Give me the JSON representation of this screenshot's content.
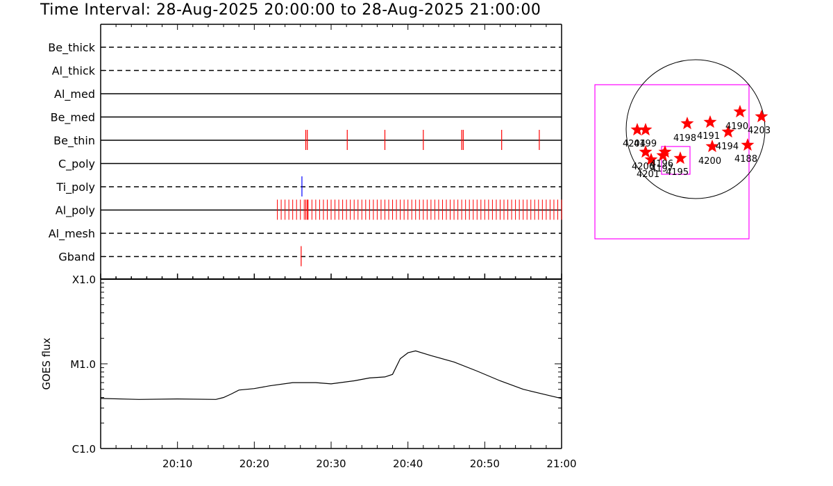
{
  "title": "Time Interval: 28-Aug-2025 20:00:00 to 28-Aug-2025 21:00:00",
  "chart_data": [
    {
      "type": "event_timeline",
      "x_range": [
        "20:00",
        "21:00"
      ],
      "rows": [
        {
          "name": "Be_thick",
          "style": "dashed",
          "events": []
        },
        {
          "name": "Al_thick",
          "style": "dashed",
          "events": []
        },
        {
          "name": "Al_med",
          "style": "solid",
          "events": []
        },
        {
          "name": "Be_med",
          "style": "solid",
          "events": []
        },
        {
          "name": "Be_thin",
          "style": "solid",
          "color": "#ff0000",
          "events": [
            26.7,
            26.9,
            32.1,
            37.0,
            42.0,
            47.0,
            47.2,
            52.2,
            57.1
          ]
        },
        {
          "name": "C_poly",
          "style": "solid",
          "events": []
        },
        {
          "name": "Ti_poly",
          "style": "dashed",
          "color": "#0000ff",
          "events": [
            26.2
          ]
        },
        {
          "name": "Al_poly",
          "style": "solid",
          "color": "#ff0000",
          "events_dense": [
            23.0,
            60.0
          ],
          "interval": 0.5,
          "events": [
            26.7,
            26.9
          ]
        },
        {
          "name": "Al_mesh",
          "style": "dashed",
          "events": []
        },
        {
          "name": "Gband",
          "style": "dashed",
          "color": "#ff0000",
          "events": [
            26.1
          ]
        }
      ]
    },
    {
      "type": "line",
      "ylabel": "GOES flux",
      "yscale": "log",
      "y_ticks": [
        "X1.0",
        "M1.0",
        "C1.0"
      ],
      "x_ticks": [
        "20:10",
        "20:20",
        "20:30",
        "20:40",
        "20:50",
        "21:00"
      ],
      "x": [
        "20:00",
        "20:05",
        "20:10",
        "20:15",
        "20:16",
        "20:17",
        "20:18",
        "20:20",
        "20:22",
        "20:25",
        "20:28",
        "20:30",
        "20:33",
        "20:35",
        "20:37",
        "20:38",
        "20:39",
        "20:40",
        "20:41",
        "20:43",
        "20:46",
        "20:49",
        "20:52",
        "20:55",
        "20:58",
        "21:00"
      ],
      "y": [
        3.9e-06,
        3.8e-06,
        3.85e-06,
        3.8e-06,
        4e-06,
        4.4e-06,
        4.9e-06,
        5.1e-06,
        5.5e-06,
        6e-06,
        6e-06,
        5.8e-06,
        6.3e-06,
        6.8e-06,
        7e-06,
        7.5e-06,
        1.15e-05,
        1.35e-05,
        1.42e-05,
        1.25e-05,
        1.05e-05,
        8.2e-06,
        6.3e-06,
        5e-06,
        4.3e-06,
        3.9e-06
      ]
    }
  ],
  "map": {
    "ar_labels": [
      "4204",
      "4199",
      "4198",
      "4191",
      "4190",
      "4203",
      "4194",
      "4188",
      "4200",
      "4206",
      "4201",
      "4196",
      "4197",
      "4195"
    ]
  }
}
